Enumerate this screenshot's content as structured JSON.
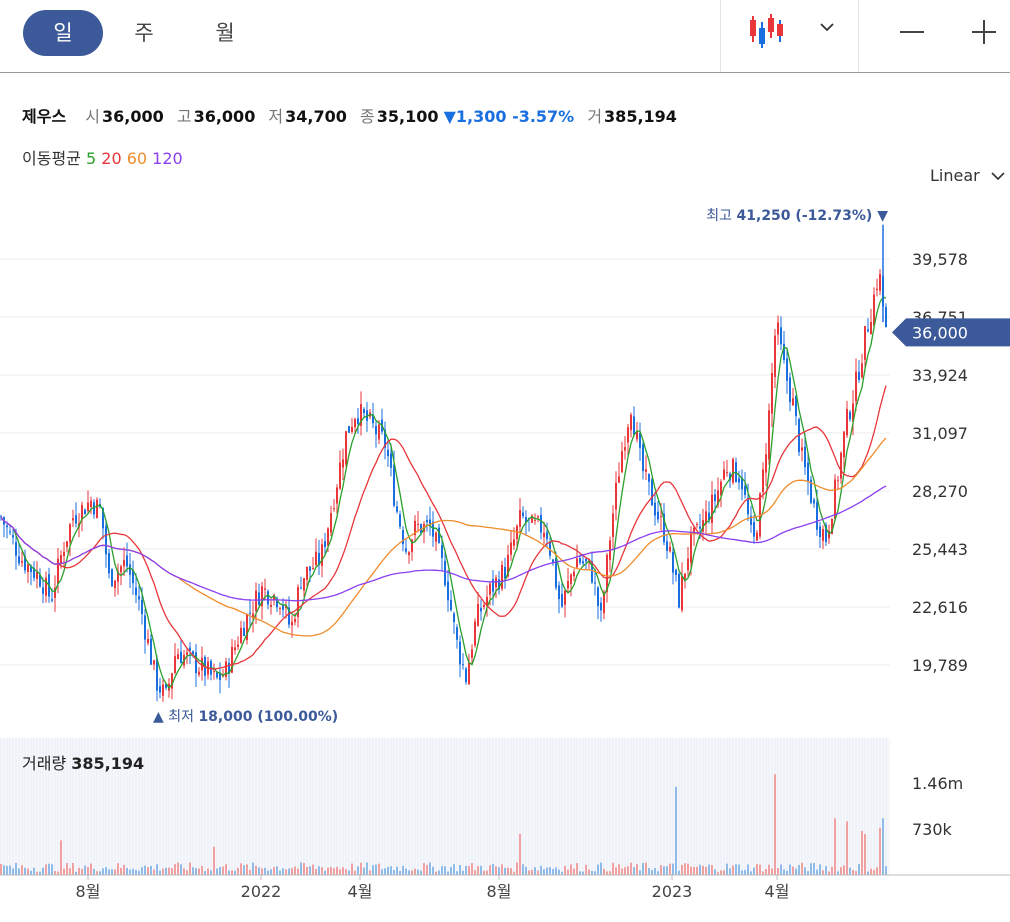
{
  "tabs": [
    {
      "label": "일",
      "active": true
    },
    {
      "label": "주",
      "active": false
    },
    {
      "label": "월",
      "active": false
    }
  ],
  "toolbar_icons": [
    "candlestick-icon",
    "chevron-down-icon",
    "minus-icon",
    "plus-icon"
  ],
  "stock": {
    "name": "제우스",
    "open_label": "시",
    "open": "36,000",
    "high_label": "고",
    "high": "36,000",
    "low_label": "저",
    "low": "34,700",
    "close_label": "종",
    "close": "35,100",
    "change": "▼1,300 -3.57%",
    "volume_label": "거",
    "volume": "385,194"
  },
  "ma_legend": {
    "label": "이동평균",
    "periods": [
      {
        "label": "5",
        "color": "#2aa02a"
      },
      {
        "label": "20",
        "color": "#e8363a"
      },
      {
        "label": "60",
        "color": "#f08c2c"
      },
      {
        "label": "120",
        "color": "#8a3ff0"
      }
    ]
  },
  "scale_selector": "Linear",
  "price_tag": "36,000",
  "high_marker": {
    "label": "최고",
    "value": "41,250 (-12.73%)",
    "arrow": "▼"
  },
  "low_marker": {
    "label": "최저",
    "value": "18,000 (100.00%)",
    "arrow": "▲"
  },
  "volume_panel": {
    "label": "거래량",
    "value": "385,194"
  },
  "colors": {
    "up": "#e8363a",
    "down": "#1a6fe0",
    "accent": "#3c5a99",
    "volume_up": "#f0a0a0",
    "volume_down": "#8fbbe8"
  },
  "chart_data": {
    "type": "candlestick",
    "y_ticks": [
      "39,578",
      "36,751",
      "33,924",
      "31,097",
      "28,270",
      "25,443",
      "22,616",
      "19,789"
    ],
    "y_tick_values": [
      39578,
      36751,
      33924,
      31097,
      28270,
      25443,
      22616,
      19789
    ],
    "x_ticks": [
      "8월",
      "2022",
      "4월",
      "8월",
      "2023",
      "4월"
    ],
    "volume_ticks": [
      "1.46m",
      "730k"
    ],
    "price_anchors": [
      [
        0,
        27000
      ],
      [
        20,
        25000
      ],
      [
        40,
        24000
      ],
      [
        50,
        23000
      ],
      [
        62,
        25500
      ],
      [
        72,
        27000
      ],
      [
        90,
        27800
      ],
      [
        100,
        27300
      ],
      [
        108,
        24000
      ],
      [
        125,
        24800
      ],
      [
        140,
        22500
      ],
      [
        155,
        19000
      ],
      [
        165,
        18200
      ],
      [
        175,
        20500
      ],
      [
        190,
        20000
      ],
      [
        205,
        19500
      ],
      [
        215,
        19000
      ],
      [
        225,
        19500
      ],
      [
        240,
        21500
      ],
      [
        260,
        23500
      ],
      [
        280,
        23000
      ],
      [
        290,
        21500
      ],
      [
        300,
        24000
      ],
      [
        320,
        25000
      ],
      [
        335,
        28500
      ],
      [
        345,
        31000
      ],
      [
        355,
        32200
      ],
      [
        370,
        31500
      ],
      [
        385,
        30500
      ],
      [
        395,
        27500
      ],
      [
        405,
        25500
      ],
      [
        415,
        26500
      ],
      [
        430,
        26500
      ],
      [
        445,
        24000
      ],
      [
        455,
        21000
      ],
      [
        465,
        19200
      ],
      [
        475,
        22000
      ],
      [
        490,
        23500
      ],
      [
        505,
        24500
      ],
      [
        520,
        27000
      ],
      [
        530,
        26500
      ],
      [
        545,
        26500
      ],
      [
        560,
        22500
      ],
      [
        575,
        25000
      ],
      [
        590,
        24500
      ],
      [
        600,
        22000
      ],
      [
        610,
        26500
      ],
      [
        620,
        30000
      ],
      [
        630,
        32500
      ],
      [
        640,
        29500
      ],
      [
        650,
        28000
      ],
      [
        665,
        26000
      ],
      [
        678,
        23000
      ],
      [
        688,
        25500
      ],
      [
        700,
        26500
      ],
      [
        715,
        28000
      ],
      [
        725,
        29500
      ],
      [
        740,
        29000
      ],
      [
        752,
        25500
      ],
      [
        760,
        28000
      ],
      [
        768,
        32000
      ],
      [
        775,
        36500
      ],
      [
        782,
        34500
      ],
      [
        792,
        32500
      ],
      [
        800,
        30000
      ],
      [
        808,
        28500
      ],
      [
        815,
        27000
      ],
      [
        825,
        26000
      ],
      [
        835,
        28500
      ],
      [
        845,
        31500
      ],
      [
        855,
        33500
      ],
      [
        865,
        36000
      ],
      [
        872,
        37500
      ],
      [
        878,
        39000
      ],
      [
        885,
        36000
      ]
    ],
    "volume_spikes": [
      [
        675,
        1.4
      ],
      [
        773,
        1.6
      ],
      [
        835,
        0.9
      ],
      [
        845,
        0.85
      ],
      [
        860,
        0.7
      ],
      [
        865,
        0.65
      ],
      [
        880,
        0.75
      ],
      [
        883,
        0.9
      ],
      [
        520,
        0.65
      ],
      [
        60,
        0.55
      ],
      [
        213,
        0.45
      ]
    ],
    "high": 41250,
    "low": 18000,
    "last": 35100
  }
}
